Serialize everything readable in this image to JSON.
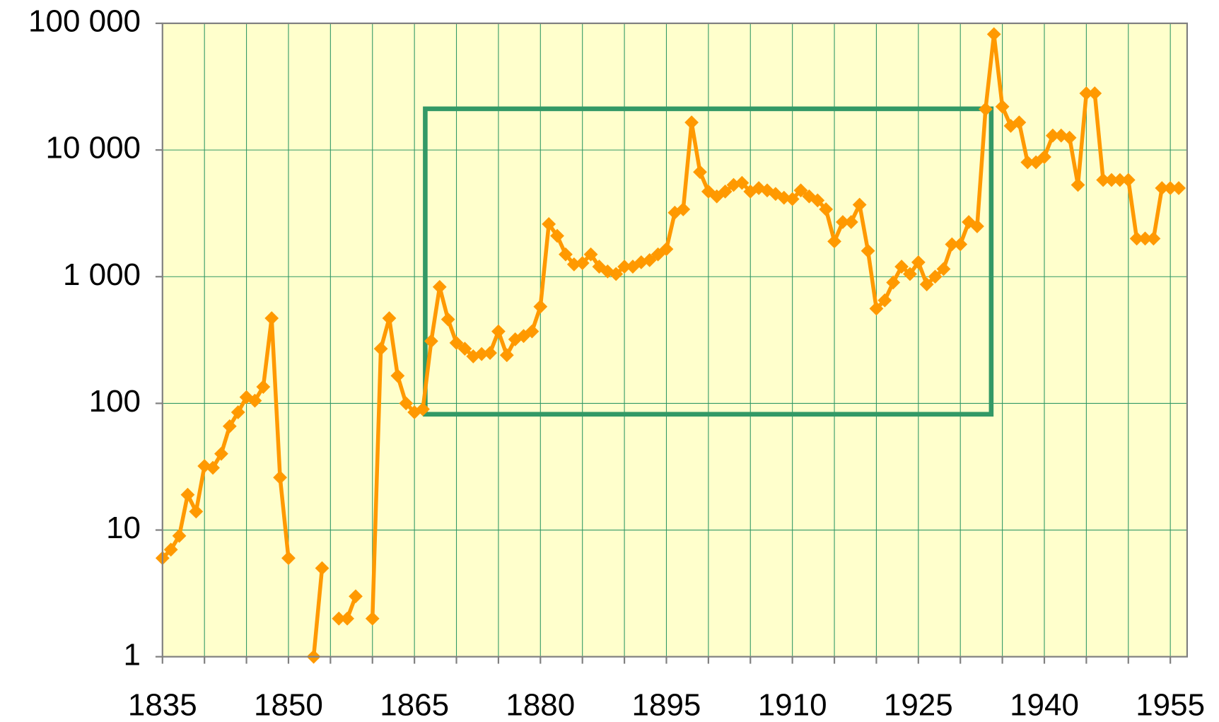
{
  "chart_data": {
    "type": "line",
    "log_y": true,
    "grid": true,
    "x": [
      1835,
      1836,
      1837,
      1838,
      1839,
      1840,
      1841,
      1842,
      1843,
      1844,
      1845,
      1846,
      1847,
      1848,
      1849,
      1850,
      1851,
      1852,
      1853,
      1854,
      1855,
      1856,
      1857,
      1858,
      1859,
      1860,
      1861,
      1862,
      1863,
      1864,
      1865,
      1866,
      1867,
      1868,
      1869,
      1870,
      1871,
      1872,
      1873,
      1874,
      1875,
      1876,
      1877,
      1878,
      1879,
      1880,
      1881,
      1882,
      1883,
      1884,
      1885,
      1886,
      1887,
      1888,
      1889,
      1890,
      1891,
      1892,
      1893,
      1894,
      1895,
      1896,
      1897,
      1898,
      1899,
      1900,
      1901,
      1902,
      1903,
      1904,
      1905,
      1906,
      1907,
      1908,
      1909,
      1910,
      1911,
      1912,
      1913,
      1914,
      1915,
      1916,
      1917,
      1918,
      1919,
      1920,
      1921,
      1922,
      1923,
      1924,
      1925,
      1926,
      1927,
      1928,
      1929,
      1930,
      1931,
      1932,
      1933,
      1934,
      1935,
      1936,
      1937,
      1938,
      1939,
      1940,
      1941,
      1942,
      1943,
      1944,
      1945,
      1946,
      1947,
      1948,
      1949,
      1950,
      1951,
      1952,
      1953,
      1954,
      1955,
      1956
    ],
    "series": [
      {
        "color": "#ff9900",
        "values": [
          6,
          7,
          9,
          19,
          14,
          32,
          31,
          40,
          66,
          85,
          112,
          105,
          135,
          470,
          26,
          6,
          null,
          null,
          1,
          5,
          null,
          2,
          2,
          3,
          null,
          2,
          270,
          470,
          165,
          100,
          85,
          90,
          310,
          830,
          460,
          300,
          270,
          235,
          245,
          250,
          370,
          240,
          320,
          340,
          370,
          580,
          2600,
          2100,
          1500,
          1250,
          1280,
          1500,
          1200,
          1100,
          1050,
          1200,
          1200,
          1300,
          1350,
          1500,
          1650,
          3200,
          3400,
          16500,
          6700,
          4700,
          4300,
          4700,
          5300,
          5500,
          4700,
          5000,
          4800,
          4500,
          4200,
          4100,
          4800,
          4300,
          4000,
          3400,
          1900,
          2700,
          2700,
          3700,
          1600,
          560,
          650,
          900,
          1200,
          1050,
          1300,
          870,
          1000,
          1150,
          1800,
          1800,
          2700,
          2500,
          21000,
          82000,
          22000,
          15500,
          16500,
          8000,
          8000,
          8800,
          13000,
          13000,
          12500,
          5300,
          28000,
          28000,
          5800,
          5800,
          5800,
          5800,
          2000,
          2000,
          2000,
          5000,
          5000,
          5000
        ]
      }
    ],
    "xlim": [
      1835,
      1957
    ],
    "xticks": [
      1835,
      1850,
      1865,
      1880,
      1895,
      1910,
      1925,
      1940,
      1955
    ],
    "x_minor_ticks": [
      1840,
      1845,
      1855,
      1860,
      1870,
      1875,
      1885,
      1890,
      1900,
      1905,
      1915,
      1920,
      1930,
      1935,
      1945,
      1950
    ],
    "ylim": [
      1,
      100000
    ],
    "yticks": [
      1,
      10,
      100,
      {
        "value": 1000,
        "label": "1 000"
      },
      {
        "value": 10000,
        "label": "10 000"
      },
      {
        "value": 100000,
        "label": "100 000"
      }
    ]
  }
}
